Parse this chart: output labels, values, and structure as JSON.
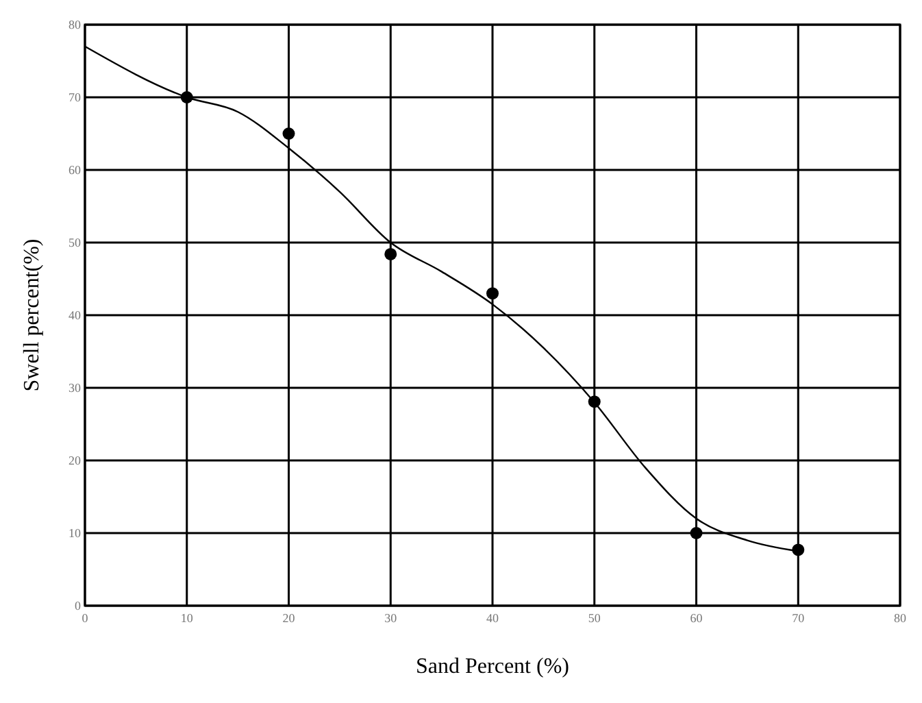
{
  "chart_data": {
    "type": "scatter",
    "xlabel": "Sand Percent (%)",
    "ylabel": "Swell percent(%)",
    "xlim": [
      0,
      80
    ],
    "xticks": [
      0,
      10,
      20,
      30,
      40,
      50,
      60,
      70,
      80
    ],
    "ylim": [
      0,
      80
    ],
    "yticks": [
      0,
      10,
      20,
      30,
      40,
      50,
      60,
      70,
      80
    ],
    "grid": true,
    "series": [
      {
        "color": "#000000",
        "marker": "circle",
        "x": [
          10,
          20,
          30,
          40,
          50,
          60,
          70
        ],
        "values": [
          70,
          65,
          48.4,
          43,
          28.1,
          10,
          7.7
        ]
      },
      {
        "type": "line",
        "color": "#000000",
        "marker": "none",
        "x": [
          0,
          10,
          15,
          20,
          25,
          30,
          35,
          40,
          45,
          50,
          55,
          60,
          65,
          70
        ],
        "values": [
          77,
          70,
          68,
          63,
          57,
          50,
          46,
          41.5,
          35.5,
          28,
          19,
          12,
          9,
          7.5
        ]
      }
    ]
  }
}
